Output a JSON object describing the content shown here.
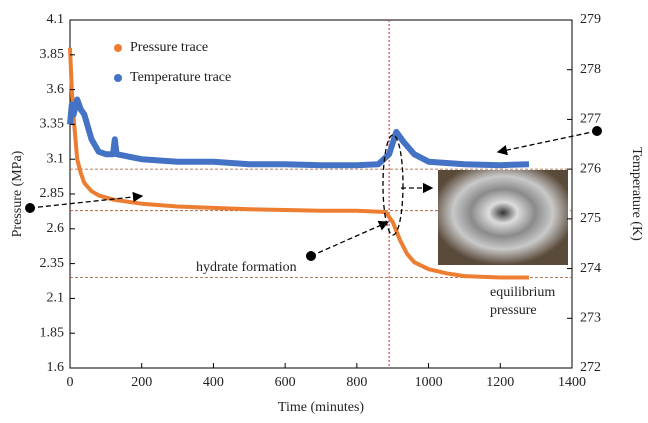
{
  "chart_data": {
    "type": "line",
    "x_label": "Time (minutes)",
    "y_label": "Pressure (MPa)",
    "y2_label": "Temperature (K)",
    "xlim": [
      0,
      1400
    ],
    "xticks": [
      0,
      200,
      400,
      600,
      800,
      1000,
      1200,
      1400
    ],
    "ylim": [
      1.6,
      4.1
    ],
    "yticks": [
      1.6,
      1.85,
      2.1,
      2.35,
      2.6,
      2.85,
      3.1,
      3.35,
      3.6,
      3.85,
      4.1
    ],
    "y2lim": [
      272,
      279
    ],
    "y2ticks": [
      272,
      273,
      274,
      275,
      276,
      277,
      278,
      279
    ],
    "series": [
      {
        "name": "Pressure trace",
        "color": "#ed7d31",
        "x": [
          0,
          5,
          10,
          15,
          20,
          30,
          40,
          60,
          80,
          120,
          200,
          300,
          400,
          500,
          600,
          700,
          800,
          880,
          900,
          920,
          940,
          960,
          1000,
          1050,
          1100,
          1200,
          1280
        ],
        "values": [
          3.9,
          3.6,
          3.4,
          3.25,
          3.1,
          3.0,
          2.93,
          2.87,
          2.84,
          2.81,
          2.78,
          2.76,
          2.75,
          2.74,
          2.735,
          2.73,
          2.73,
          2.72,
          2.65,
          2.52,
          2.42,
          2.36,
          2.31,
          2.28,
          2.26,
          2.25,
          2.25
        ]
      },
      {
        "name": "Temperature trace",
        "color": "#4472c4",
        "axis": "y2",
        "x": [
          0,
          5,
          10,
          20,
          30,
          40,
          60,
          80,
          100,
          120,
          125,
          130,
          200,
          300,
          400,
          500,
          600,
          700,
          800,
          860,
          890,
          910,
          930,
          960,
          1000,
          1100,
          1200,
          1280
        ],
        "values": [
          276.9,
          277.3,
          277.1,
          277.4,
          277.2,
          277.1,
          276.6,
          276.35,
          276.3,
          276.3,
          276.6,
          276.3,
          276.2,
          276.15,
          276.15,
          276.1,
          276.1,
          276.08,
          276.08,
          276.1,
          276.3,
          276.75,
          276.55,
          276.3,
          276.15,
          276.1,
          276.08,
          276.1
        ]
      }
    ],
    "reference_lines": [
      {
        "value": 276,
        "axis": "y2"
      },
      {
        "value": 2.73,
        "axis": "y"
      },
      {
        "value": 2.25,
        "axis": "y"
      }
    ],
    "vline": 890,
    "annotations": [
      "hydrate formation",
      "equilibrium",
      "pressure"
    ],
    "legend": "upper left"
  }
}
